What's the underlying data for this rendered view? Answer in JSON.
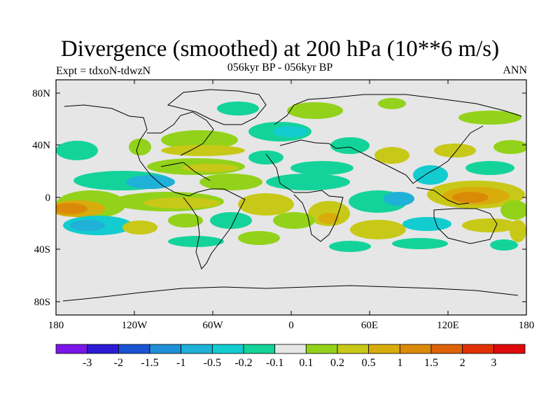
{
  "title": "Divergence (smoothed) at 200 hPa (10**6 m/s)",
  "subtitle": "056kyr BP - 056kyr BP",
  "expt": "Expt = tdxoN-tdwzN",
  "season": "ANN",
  "lat_labels": [
    "80N",
    "40N",
    "0",
    "40S",
    "80S"
  ],
  "lon_labels": [
    "180",
    "120W",
    "60W",
    "0",
    "60E",
    "120E",
    "180"
  ],
  "colorbar": {
    "labels": [
      "-3",
      "-2",
      "-1.5",
      "-1",
      "-0.5",
      "-0.2",
      "-0.1",
      "0.1",
      "0.2",
      "0.5",
      "1",
      "1.5",
      "2",
      "3"
    ],
    "colors": [
      "#7a16e8",
      "#2b1bd6",
      "#1a53d2",
      "#1f8fd8",
      "#1fb1d8",
      "#12ccd0",
      "#14d39a",
      "#e6e6e6",
      "#93d21a",
      "#c8c818",
      "#d8ac0c",
      "#db8a08",
      "#dc6204",
      "#e03004",
      "#e00a0a"
    ]
  }
}
